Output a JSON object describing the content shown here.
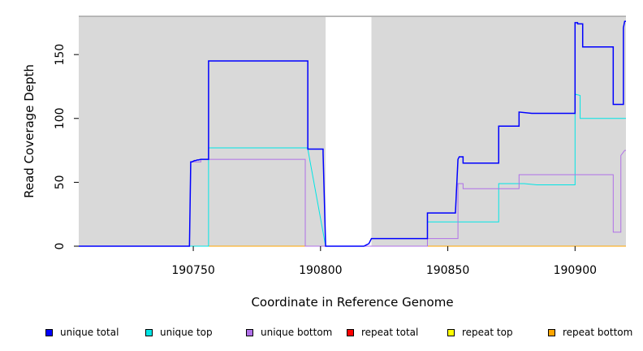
{
  "chart_data": {
    "type": "line",
    "title": "",
    "xlabel": "Coordinate in Reference Genome",
    "ylabel": "Read Coverage Depth",
    "xlim": [
      190705,
      190920
    ],
    "ylim": [
      0,
      180
    ],
    "xticks": [
      190750,
      190800,
      190850,
      190900
    ],
    "xtick_labels": [
      "190750",
      "190800",
      "190850",
      "190900"
    ],
    "yticks": [
      0,
      50,
      100,
      150
    ],
    "ytick_labels": [
      "0",
      "50",
      "100",
      "150"
    ],
    "background_color": "#d9d9d9",
    "gap_regions": [
      [
        190802,
        190820
      ]
    ],
    "grid": false,
    "legend_position": "bottom",
    "series": [
      {
        "name": "unique total",
        "color": "#0000ff",
        "x": [
          190705,
          190748.5,
          190749,
          190749.5,
          190750.5,
          190751,
          190751.5,
          190752,
          190753,
          190754,
          190756,
          190756,
          190795,
          190795,
          190801,
          190801,
          190802,
          190810,
          190817,
          190818,
          190819,
          190820,
          190842,
          190842,
          190853,
          190854,
          190854.5,
          190855,
          190856,
          190856,
          190870,
          190870,
          190878,
          190878,
          190883,
          190900,
          190900,
          190901,
          190901,
          190903,
          190903,
          190915,
          190915,
          190919,
          190919,
          190919.5,
          190920
        ],
        "y": [
          0,
          0,
          66,
          66,
          67,
          67,
          67.5,
          67.5,
          68,
          68,
          68,
          145,
          145,
          76,
          76,
          73,
          0,
          0,
          0,
          1,
          2,
          6,
          6,
          26,
          26,
          68,
          70,
          70,
          70,
          65,
          65,
          94,
          94,
          105,
          104,
          104,
          175,
          175,
          174,
          174,
          156,
          156,
          111,
          111,
          171,
          176,
          176
        ]
      },
      {
        "name": "unique top",
        "color": "#00e5e5",
        "x": [
          190705,
          190756,
          190756,
          190795,
          190795,
          190802,
          190842,
          190842,
          190870,
          190870,
          190880,
          190885,
          190900,
          190900,
          190902,
          190902,
          190920
        ],
        "y": [
          0,
          0,
          77,
          77,
          76,
          0,
          0,
          19,
          19,
          49,
          49,
          48,
          48,
          119,
          118,
          100,
          100
        ]
      },
      {
        "name": "unique bottom",
        "color": "#b070e8",
        "x": [
          190705,
          190748.5,
          190749,
          190753,
          190753,
          190794,
          190794,
          190802,
          190842,
          190842,
          190854,
          190854,
          190856,
          190856,
          190878,
          190878,
          190915,
          190915,
          190918,
          190918,
          190919.5,
          190920
        ],
        "y": [
          0,
          0,
          66,
          66,
          68,
          68,
          0,
          0,
          0,
          6,
          6,
          49,
          49,
          45,
          45,
          56,
          56,
          11,
          11,
          71,
          75,
          75
        ]
      },
      {
        "name": "repeat total",
        "color": "#ff0000",
        "x": [
          190756,
          190802,
          190820,
          190920
        ],
        "y": [
          0,
          0,
          0,
          0
        ]
      },
      {
        "name": "repeat top",
        "color": "#ffff00",
        "x": [
          190756,
          190802,
          190820,
          190920
        ],
        "y": [
          0,
          0,
          0,
          0
        ]
      },
      {
        "name": "repeat bottom",
        "color": "#ffa500",
        "x": [
          190756,
          190802,
          190820,
          190920
        ],
        "y": [
          0,
          0,
          0,
          0
        ]
      }
    ]
  }
}
